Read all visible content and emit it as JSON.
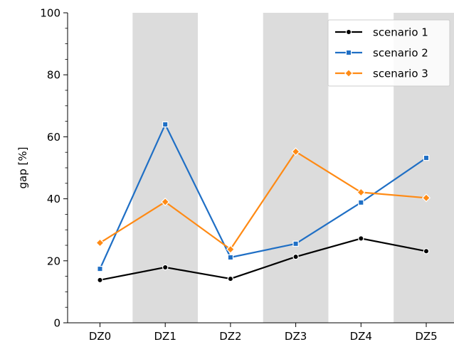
{
  "chart_data": {
    "type": "line",
    "categories": [
      "DZ0",
      "DZ1",
      "DZ2",
      "DZ3",
      "DZ4",
      "DZ5"
    ],
    "ylabel": "gap [%]",
    "ylim": [
      0,
      100
    ],
    "yticks": [
      0,
      20,
      40,
      60,
      80,
      100
    ],
    "shaded_bands": [
      "DZ1",
      "DZ3",
      "DZ5"
    ],
    "band_color": "#dcdcdc",
    "grid": false,
    "legend_position": "top-right",
    "series": [
      {
        "name": "scenario 1",
        "values": [
          13.8,
          17.9,
          14.2,
          21.3,
          27.2,
          23.1
        ],
        "color": "#000000",
        "marker": "circle"
      },
      {
        "name": "scenario 2",
        "values": [
          17.4,
          64.0,
          21.1,
          25.5,
          38.8,
          53.2
        ],
        "color": "#1f6fc5",
        "marker": "square"
      },
      {
        "name": "scenario 3",
        "values": [
          25.8,
          39.0,
          23.7,
          55.2,
          42.1,
          40.3
        ],
        "color": "#ff8a14",
        "marker": "diamond"
      }
    ]
  }
}
